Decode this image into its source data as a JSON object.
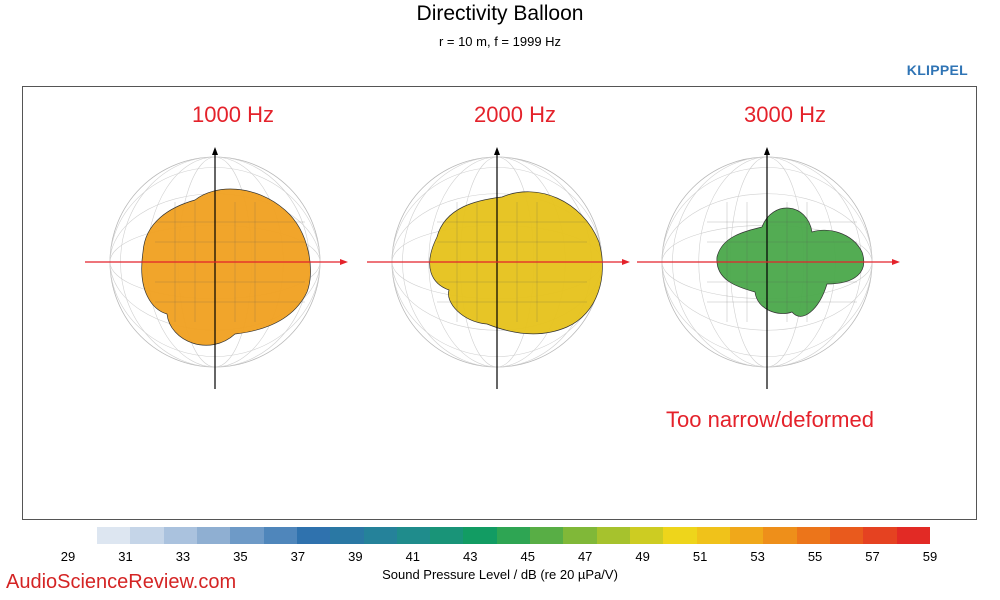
{
  "header": {
    "title": "Directivity Balloon",
    "subtitle": "r = 10 m, f =  1999 Hz",
    "brand": "KLIPPEL"
  },
  "chart_data": {
    "type": "balloon",
    "panels": [
      {
        "label": "1000 Hz",
        "color": "#f0a020"
      },
      {
        "label": "2000 Hz",
        "color": "#e6c21a"
      },
      {
        "label": "3000 Hz",
        "color": "#4aa84a"
      }
    ],
    "annotation": "Too narrow/deformed",
    "colorbar": {
      "min": 29,
      "max": 59,
      "step": 2,
      "ticks": [
        29,
        31,
        33,
        35,
        37,
        39,
        41,
        43,
        45,
        47,
        49,
        51,
        53,
        55,
        57,
        59
      ],
      "label": "Sound Pressure Level / dB (re 20 µPa/V)",
      "colors": [
        "#dde6f1",
        "#c5d5e8",
        "#aac2de",
        "#8fafd2",
        "#6e9ac7",
        "#4f86bb",
        "#2f72ae",
        "#2a78a4",
        "#25829a",
        "#1f8c8c",
        "#199478",
        "#129c63",
        "#2ea553",
        "#58ae45",
        "#80b838",
        "#a6c22d",
        "#cdcc22",
        "#eed51b",
        "#f0c21a",
        "#f0a81a",
        "#ee8f1a",
        "#ec751a",
        "#e95a1d",
        "#e54221",
        "#e22a25"
      ]
    }
  },
  "watermark": "AudioScienceReview.com"
}
